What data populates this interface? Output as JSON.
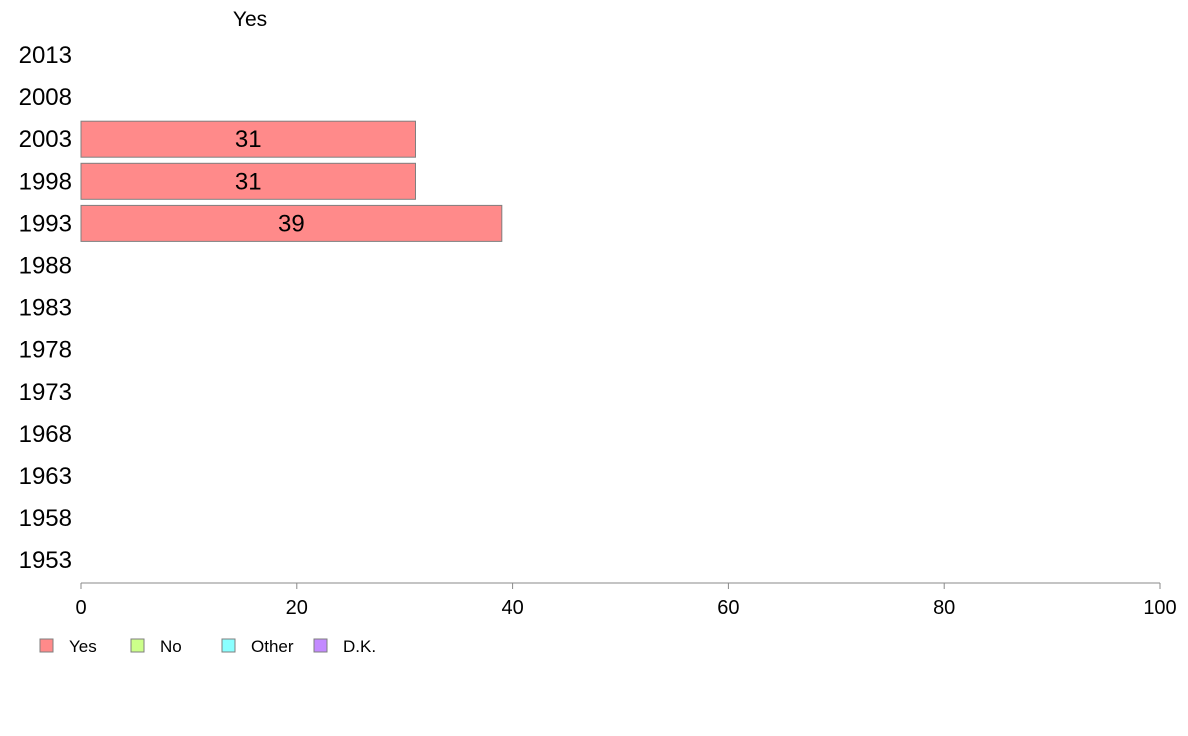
{
  "chart_data": {
    "type": "bar",
    "orientation": "horizontal",
    "title": "Yes",
    "categories": [
      "2013",
      "2008",
      "2003",
      "1998",
      "1993",
      "1988",
      "1983",
      "1978",
      "1973",
      "1968",
      "1963",
      "1958",
      "1953"
    ],
    "series": [
      {
        "name": "Yes",
        "color": "#ff8a8a",
        "values": [
          null,
          null,
          31,
          31,
          39,
          null,
          null,
          null,
          null,
          null,
          null,
          null,
          null
        ]
      }
    ],
    "xlim": [
      0,
      100
    ],
    "xticks": [
      0,
      20,
      40,
      60,
      80,
      100
    ],
    "grid": false,
    "legend": {
      "position": "bottom-left",
      "entries": [
        {
          "label": "Yes",
          "color": "#ff8a8a"
        },
        {
          "label": "No",
          "color": "#ccff8a"
        },
        {
          "label": "Other",
          "color": "#8affff"
        },
        {
          "label": "D.K.",
          "color": "#c38aff"
        }
      ]
    }
  }
}
